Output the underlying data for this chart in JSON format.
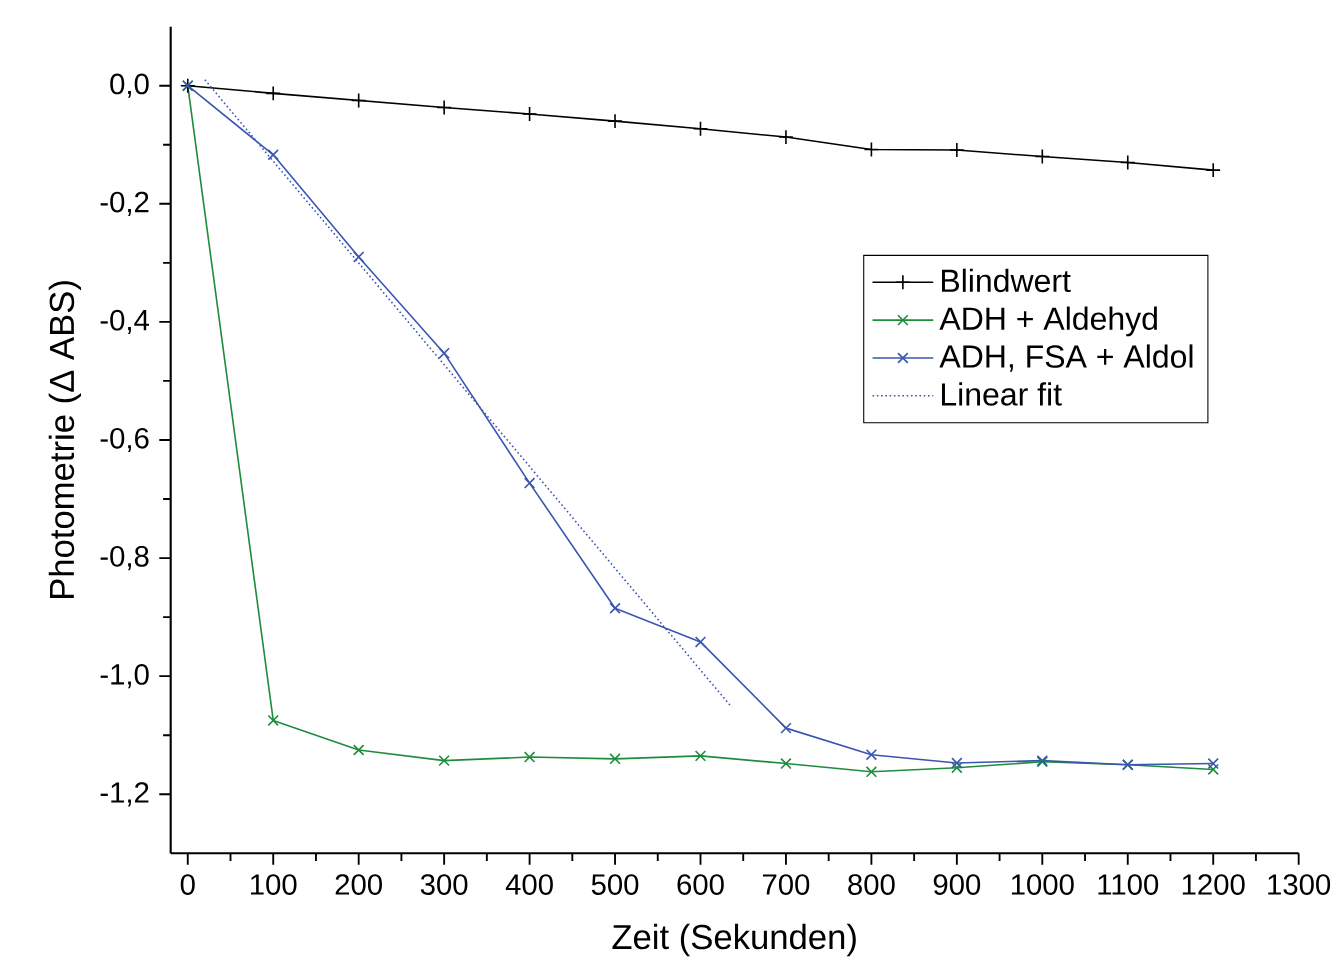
{
  "chart_data": {
    "type": "line",
    "xlabel": "Zeit (Sekunden)",
    "ylabel": "Photometrie (Δ ABS)",
    "x": [
      0,
      100,
      200,
      300,
      400,
      500,
      600,
      700,
      800,
      900,
      1000,
      1100,
      1200
    ],
    "series": [
      {
        "name": "Blindwert",
        "color": "#000000",
        "marker": "plus",
        "values": [
          0,
          -0.013,
          -0.025,
          -0.037,
          -0.048,
          -0.06,
          -0.073,
          -0.087,
          -0.108,
          -0.109,
          -0.12,
          -0.13,
          -0.143
        ]
      },
      {
        "name": "ADH + Aldehyd",
        "color": "#1e8c3c",
        "marker": "cross",
        "values": [
          0,
          -1.075,
          -1.125,
          -1.143,
          -1.137,
          -1.14,
          -1.135,
          -1.148,
          -1.162,
          -1.155,
          -1.145,
          -1.15,
          -1.158
        ]
      },
      {
        "name": "ADH, FSA + Aldol",
        "color": "#3a56b0",
        "marker": "cross",
        "values": [
          0,
          -0.117,
          -0.29,
          -0.453,
          -0.673,
          -0.885,
          -0.942,
          -1.088,
          -1.133,
          -1.147,
          -1.143,
          -1.15,
          -1.148
        ]
      },
      {
        "name": "Linear fit",
        "color": "#3a56b0",
        "marker": "none",
        "line_style": "dotted",
        "x": [
          20,
          635
        ],
        "values": [
          0.01,
          -1.05
        ]
      }
    ],
    "xlim": [
      -20,
      1300
    ],
    "ylim": [
      -1.3,
      0.1
    ],
    "xticks": [
      0,
      100,
      200,
      300,
      400,
      500,
      600,
      700,
      800,
      900,
      1000,
      1100,
      1200,
      1300
    ],
    "yticks": [
      {
        "value": -1.2,
        "label": "-1,2"
      },
      {
        "value": -1.0,
        "label": "-1,0"
      },
      {
        "value": -0.8,
        "label": "-0,8"
      },
      {
        "value": -0.6,
        "label": "-0,6"
      },
      {
        "value": -0.4,
        "label": "-0,4"
      },
      {
        "value": -0.2,
        "label": "-0,2"
      },
      {
        "value": 0,
        "label": "0,0"
      }
    ],
    "grid": false,
    "legend": "right"
  }
}
